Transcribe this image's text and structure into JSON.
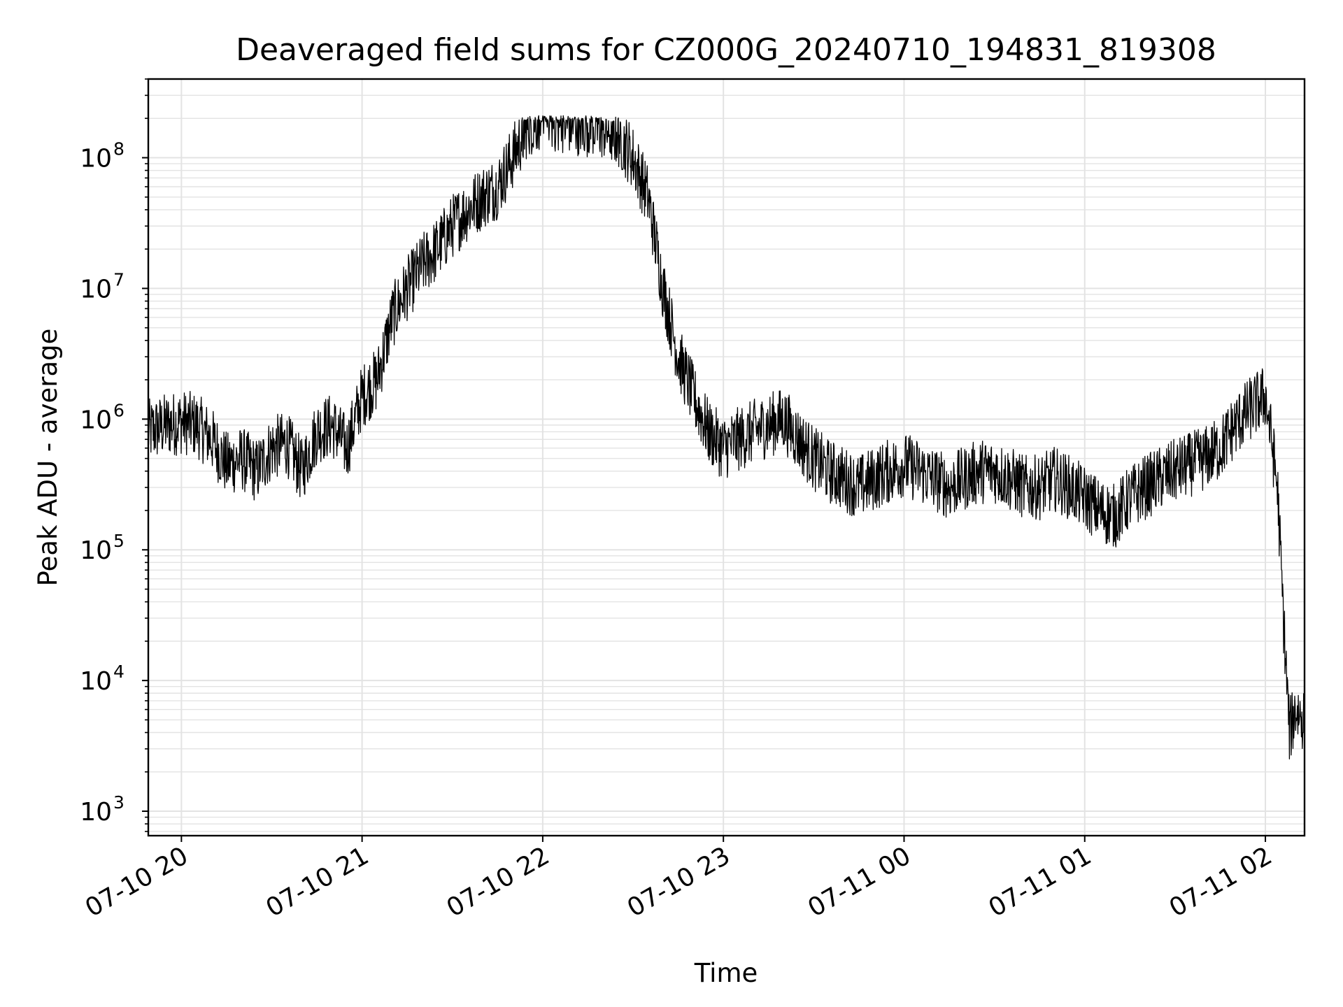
{
  "chart_data": {
    "type": "line",
    "title": "Deaveraged field sums for CZ000G_20240710_194831_819308",
    "xlabel": "Time",
    "ylabel": "Peak ADU - average",
    "yscale": "log",
    "grid": true,
    "line_color": "#000000",
    "grid_color": "#e3e3e3",
    "xlim": [
      "07-10 19:49",
      "07-11 02:13"
    ],
    "ylim": [
      650,
      400000000
    ],
    "x_ticks": [
      "07-10 20",
      "07-10 21",
      "07-10 22",
      "07-10 23",
      "07-11 00",
      "07-11 01",
      "07-11 02"
    ],
    "y_ticks": [
      {
        "base": "10",
        "exp": "3",
        "value": 1000
      },
      {
        "base": "10",
        "exp": "4",
        "value": 10000
      },
      {
        "base": "10",
        "exp": "5",
        "value": 100000
      },
      {
        "base": "10",
        "exp": "6",
        "value": 1000000
      },
      {
        "base": "10",
        "exp": "7",
        "value": 10000000
      },
      {
        "base": "10",
        "exp": "8",
        "value": 100000000
      }
    ],
    "series": [
      {
        "x": [
          "07-10 19:49",
          "07-10 19:55",
          "07-10 20:00",
          "07-10 20:05",
          "07-10 20:10",
          "07-10 20:15",
          "07-10 20:20",
          "07-10 20:25",
          "07-10 20:30",
          "07-10 20:35",
          "07-10 20:40",
          "07-10 20:45",
          "07-10 20:50",
          "07-10 20:55",
          "07-10 21:00",
          "07-10 21:05",
          "07-10 21:10",
          "07-10 21:15",
          "07-10 21:20",
          "07-10 21:25",
          "07-10 21:30",
          "07-10 21:35",
          "07-10 21:40",
          "07-10 21:45",
          "07-10 21:50",
          "07-10 21:55",
          "07-10 22:00",
          "07-10 22:05",
          "07-10 22:10",
          "07-10 22:15",
          "07-10 22:20",
          "07-10 22:25",
          "07-10 22:30",
          "07-10 22:35",
          "07-10 22:40",
          "07-10 22:45",
          "07-10 22:50",
          "07-10 22:55",
          "07-10 23:00",
          "07-10 23:05",
          "07-10 23:10",
          "07-10 23:15",
          "07-10 23:20",
          "07-10 23:25",
          "07-10 23:30",
          "07-10 23:35",
          "07-10 23:40",
          "07-10 23:45",
          "07-10 23:50",
          "07-10 23:55",
          "07-11 00:00",
          "07-11 00:05",
          "07-11 00:10",
          "07-11 00:15",
          "07-11 00:20",
          "07-11 00:25",
          "07-11 00:30",
          "07-11 00:35",
          "07-11 00:40",
          "07-11 00:45",
          "07-11 00:50",
          "07-11 00:55",
          "07-11 01:00",
          "07-11 01:05",
          "07-11 01:10",
          "07-11 01:15",
          "07-11 01:20",
          "07-11 01:25",
          "07-11 01:30",
          "07-11 01:35",
          "07-11 01:40",
          "07-11 01:45",
          "07-11 01:50",
          "07-11 01:55",
          "07-11 02:00",
          "07-11 02:02",
          "07-11 02:04",
          "07-11 02:06",
          "07-11 02:08",
          "07-11 02:10",
          "07-11 02:13"
        ],
        "values": [
          800000,
          900000,
          950000,
          900000,
          700000,
          450000,
          500000,
          400000,
          600000,
          650000,
          400000,
          800000,
          900000,
          600000,
          1500000,
          2000000,
          6000000,
          10000000,
          15000000,
          20000000,
          30000000,
          40000000,
          50000000,
          60000000,
          100000000,
          180000000,
          200000000,
          190000000,
          185000000,
          180000000,
          170000000,
          150000000,
          100000000,
          50000000,
          10000000,
          3000000,
          1500000,
          800000,
          600000,
          700000,
          800000,
          900000,
          1000000,
          700000,
          500000,
          400000,
          350000,
          300000,
          350000,
          400000,
          450000,
          400000,
          350000,
          300000,
          350000,
          400000,
          400000,
          350000,
          300000,
          300000,
          350000,
          300000,
          250000,
          200000,
          180000,
          250000,
          300000,
          350000,
          400000,
          450000,
          500000,
          600000,
          900000,
          1200000,
          1500000,
          700000,
          300000,
          30000,
          4000,
          6000,
          5000
        ]
      }
    ]
  }
}
